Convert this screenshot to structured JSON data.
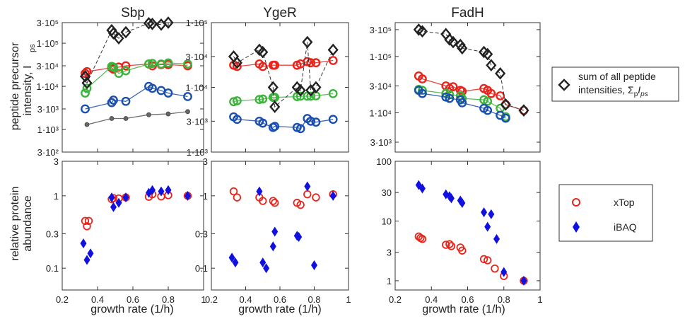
{
  "figure": {
    "ylabel_top_line1": "peptide precursor",
    "ylabel_top_line2": "intensity, I",
    "ylabel_top_sub": "ps",
    "ylabel_bottom_line1": "relative protein",
    "ylabel_bottom_line2": "abundance",
    "xlabel": "growth rate (1/h)"
  },
  "legend_top": {
    "line1": "sum of all peptide",
    "line2_prefix": "intensities, Σ",
    "line2_sub": "p",
    "line2_var": "I",
    "line2_sub2": "ps"
  },
  "legend_bottom": {
    "items": [
      {
        "label": "xTop",
        "color": "#e8251c",
        "marker": "open-circle"
      },
      {
        "label": "iBAQ",
        "color": "#1010e0",
        "marker": "filled-diamond"
      }
    ]
  },
  "chart_data": [
    {
      "type": "scatter",
      "title": "Sbp",
      "panel": "intensity",
      "yscale": "log",
      "ylim": [
        300,
        300000
      ],
      "xlim": [
        0.2,
        1.0
      ],
      "yticks": [
        300,
        1000,
        3000,
        10000,
        30000,
        100000,
        300000
      ],
      "yticklabels": [
        "3·10²",
        "1·10³",
        "3·10³",
        "1·10⁴",
        "3·10⁴",
        "1·10⁵",
        "3·10⁵"
      ],
      "sum_intensity": {
        "x": [
          0.33,
          0.34,
          0.48,
          0.49,
          0.52,
          0.56,
          0.69,
          0.71,
          0.76,
          0.8
        ],
        "y": [
          17000,
          12000,
          200000,
          170000,
          130000,
          180000,
          290000,
          280000,
          270000,
          300000
        ]
      },
      "series": [
        {
          "name": "red",
          "x": [
            0.33,
            0.34,
            0.48,
            0.49,
            0.52,
            0.56,
            0.69,
            0.71,
            0.76,
            0.8,
            0.91
          ],
          "y": [
            20000,
            22000,
            27000,
            25000,
            28000,
            30000,
            33000,
            30000,
            32000,
            32000,
            30000
          ]
        },
        {
          "name": "green",
          "x": [
            0.33,
            0.34,
            0.48,
            0.49,
            0.52,
            0.56,
            0.69,
            0.71,
            0.76,
            0.8,
            0.91
          ],
          "y": [
            7000,
            9000,
            29000,
            28000,
            20000,
            23000,
            33000,
            34000,
            33000,
            35000,
            33000
          ]
        },
        {
          "name": "blue",
          "x": [
            0.33,
            0.48,
            0.49,
            0.56,
            0.69,
            0.71,
            0.76,
            0.8,
            0.91
          ],
          "y": [
            3000,
            4200,
            4800,
            4500,
            10000,
            9000,
            8000,
            7000,
            5800
          ]
        },
        {
          "name": "gray",
          "x": [
            0.34,
            0.48,
            0.56,
            0.69,
            0.8,
            0.91
          ],
          "y": [
            1300,
            1800,
            1800,
            2200,
            2300,
            2600
          ]
        }
      ]
    },
    {
      "type": "scatter",
      "title": "YgeR",
      "panel": "intensity",
      "yscale": "log",
      "ylim": [
        1000,
        100000
      ],
      "xlim": [
        0.2,
        1.0
      ],
      "yticks": [
        1000,
        3000,
        10000,
        30000,
        100000
      ],
      "yticklabels": [
        "1·10³",
        "3·10³",
        "1·10⁴",
        "3·10⁴",
        "1·10⁵"
      ],
      "sum_intensity": {
        "x": [
          0.33,
          0.35,
          0.48,
          0.5,
          0.56,
          0.57,
          0.7,
          0.72,
          0.76,
          0.78,
          0.81,
          0.91
        ],
        "y": [
          30000,
          24000,
          38000,
          35000,
          10000,
          5000,
          10000,
          9000,
          50000,
          9000,
          10000,
          38000
        ]
      },
      "series": [
        {
          "name": "red",
          "x": [
            0.33,
            0.35,
            0.48,
            0.5,
            0.56,
            0.57,
            0.7,
            0.72,
            0.76,
            0.78,
            0.81,
            0.91
          ],
          "y": [
            22000,
            21000,
            23000,
            21000,
            22000,
            22000,
            22000,
            23000,
            25000,
            24000,
            24000,
            26000
          ]
        },
        {
          "name": "green",
          "x": [
            0.33,
            0.35,
            0.48,
            0.5,
            0.56,
            0.57,
            0.7,
            0.72,
            0.76,
            0.78,
            0.81,
            0.91
          ],
          "y": [
            6000,
            6200,
            6500,
            6600,
            7000,
            7000,
            7200,
            7300,
            7300,
            7300,
            7400,
            8000
          ]
        },
        {
          "name": "blue",
          "x": [
            0.33,
            0.35,
            0.48,
            0.5,
            0.56,
            0.57,
            0.7,
            0.72,
            0.76,
            0.78,
            0.81,
            0.91
          ],
          "y": [
            3500,
            3200,
            3000,
            2800,
            2400,
            2500,
            2400,
            2300,
            3300,
            3000,
            2900,
            3200
          ]
        }
      ]
    },
    {
      "type": "scatter",
      "title": "FadH",
      "panel": "intensity",
      "yscale": "log",
      "ylim": [
        2000,
        400000
      ],
      "xlim": [
        0.2,
        1.0
      ],
      "yticks": [
        3000,
        10000,
        30000,
        100000,
        300000
      ],
      "yticklabels": [
        "3·10³",
        "1·10⁴",
        "3·10⁴",
        "1·10⁵",
        "3·10⁵"
      ],
      "sum_intensity": {
        "x": [
          0.33,
          0.35,
          0.48,
          0.5,
          0.52,
          0.56,
          0.57,
          0.69,
          0.71,
          0.73,
          0.78,
          0.81,
          0.91
        ],
        "y": [
          300000,
          280000,
          250000,
          200000,
          180000,
          160000,
          140000,
          120000,
          110000,
          70000,
          50000,
          14000,
          11000
        ]
      },
      "series": [
        {
          "name": "red",
          "x": [
            0.33,
            0.35,
            0.48,
            0.5,
            0.52,
            0.56,
            0.57,
            0.69,
            0.71,
            0.73,
            0.78,
            0.81,
            0.91
          ],
          "y": [
            45000,
            40000,
            30000,
            27000,
            29000,
            25000,
            24000,
            27000,
            25000,
            22000,
            20000,
            14000,
            11000
          ]
        },
        {
          "name": "green",
          "x": [
            0.33,
            0.35,
            0.48,
            0.5,
            0.56,
            0.57,
            0.69,
            0.71,
            0.78,
            0.81
          ],
          "y": [
            26000,
            25000,
            22000,
            21000,
            20000,
            18000,
            17000,
            16000,
            12000,
            8500
          ]
        },
        {
          "name": "blue",
          "x": [
            0.33,
            0.35,
            0.48,
            0.5,
            0.56,
            0.57,
            0.69,
            0.71,
            0.78,
            0.81
          ],
          "y": [
            25000,
            22000,
            19000,
            18000,
            17000,
            15000,
            12000,
            11000,
            9000,
            8000
          ]
        }
      ]
    },
    {
      "type": "scatter",
      "title": "Sbp",
      "panel": "abundance",
      "yscale": "log",
      "ylim": [
        0.05,
        3
      ],
      "xlim": [
        0.2,
        1.0
      ],
      "yticks": [
        0.1,
        0.3,
        1,
        3
      ],
      "yticklabels": [
        "0.1",
        "0.3",
        "1",
        "3"
      ],
      "xticks": [
        0.2,
        0.4,
        0.6,
        0.8,
        1.0
      ],
      "xticklabels": [
        "0.2",
        "0.4",
        "0.6",
        "0.8",
        "1"
      ],
      "xTop": {
        "x": [
          0.33,
          0.34,
          0.35,
          0.48,
          0.49,
          0.52,
          0.56,
          0.69,
          0.71,
          0.76,
          0.8,
          0.91
        ],
        "y": [
          0.45,
          0.38,
          0.45,
          0.9,
          0.93,
          0.92,
          0.95,
          0.97,
          1.05,
          0.98,
          1.02,
          1.0
        ]
      },
      "iBAQ": {
        "x": [
          0.32,
          0.34,
          0.36,
          0.48,
          0.49,
          0.52,
          0.56,
          0.69,
          0.71,
          0.76,
          0.8,
          0.91
        ],
        "y": [
          0.22,
          0.13,
          0.16,
          0.95,
          0.7,
          0.8,
          0.95,
          1.1,
          1.2,
          1.15,
          1.2,
          1.0
        ]
      }
    },
    {
      "type": "scatter",
      "title": "YgeR",
      "panel": "abundance",
      "yscale": "log",
      "ylim": [
        0.05,
        3
      ],
      "xlim": [
        0.2,
        1.0
      ],
      "yticks": [
        0.1,
        0.3,
        1,
        3
      ],
      "yticklabels": [
        "0.1",
        "0.3",
        "1",
        "3"
      ],
      "xticks": [
        0.2,
        0.4,
        0.6,
        0.8,
        1.0
      ],
      "xticklabels": [
        "0.2",
        "0.4",
        "0.6",
        "0.8",
        "1"
      ],
      "xTop": {
        "x": [
          0.33,
          0.35,
          0.48,
          0.5,
          0.56,
          0.57,
          0.7,
          0.72,
          0.76,
          0.81,
          0.91
        ],
        "y": [
          1.15,
          0.95,
          0.95,
          0.85,
          0.85,
          0.8,
          0.8,
          0.75,
          1.05,
          0.95,
          1.05
        ]
      },
      "iBAQ": {
        "x": [
          0.32,
          0.34,
          0.48,
          0.5,
          0.52,
          0.57,
          0.56,
          0.7,
          0.71,
          0.76,
          0.8,
          0.91
        ],
        "y": [
          0.14,
          0.12,
          1.15,
          0.12,
          0.1,
          0.32,
          0.2,
          0.28,
          0.27,
          1.35,
          0.11,
          1.0
        ]
      }
    },
    {
      "type": "scatter",
      "title": "FadH",
      "panel": "abundance",
      "yscale": "log",
      "ylim": [
        0.7,
        100
      ],
      "xlim": [
        0.2,
        1.0
      ],
      "yticks": [
        1,
        3,
        10,
        30,
        100
      ],
      "yticklabels": [
        "1",
        "3",
        "10",
        "30",
        "100"
      ],
      "xticks": [
        0.2,
        0.4,
        0.6,
        0.8,
        1.0
      ],
      "xticklabels": [
        "0.2",
        "0.4",
        "0.6",
        "0.8",
        "1"
      ],
      "xTop": {
        "x": [
          0.33,
          0.34,
          0.35,
          0.48,
          0.5,
          0.51,
          0.56,
          0.57,
          0.69,
          0.71,
          0.75,
          0.8,
          0.91
        ],
        "y": [
          5.5,
          5.2,
          5.0,
          4.0,
          4.1,
          3.8,
          3.6,
          3.2,
          2.3,
          2.2,
          1.6,
          1.2,
          1.0
        ]
      },
      "iBAQ": {
        "x": [
          0.33,
          0.35,
          0.48,
          0.5,
          0.51,
          0.56,
          0.57,
          0.69,
          0.71,
          0.73,
          0.76,
          0.8,
          0.91
        ],
        "y": [
          40,
          35,
          28,
          26,
          24,
          22,
          20,
          14,
          8,
          13,
          5,
          1.4,
          1.0
        ]
      }
    }
  ]
}
